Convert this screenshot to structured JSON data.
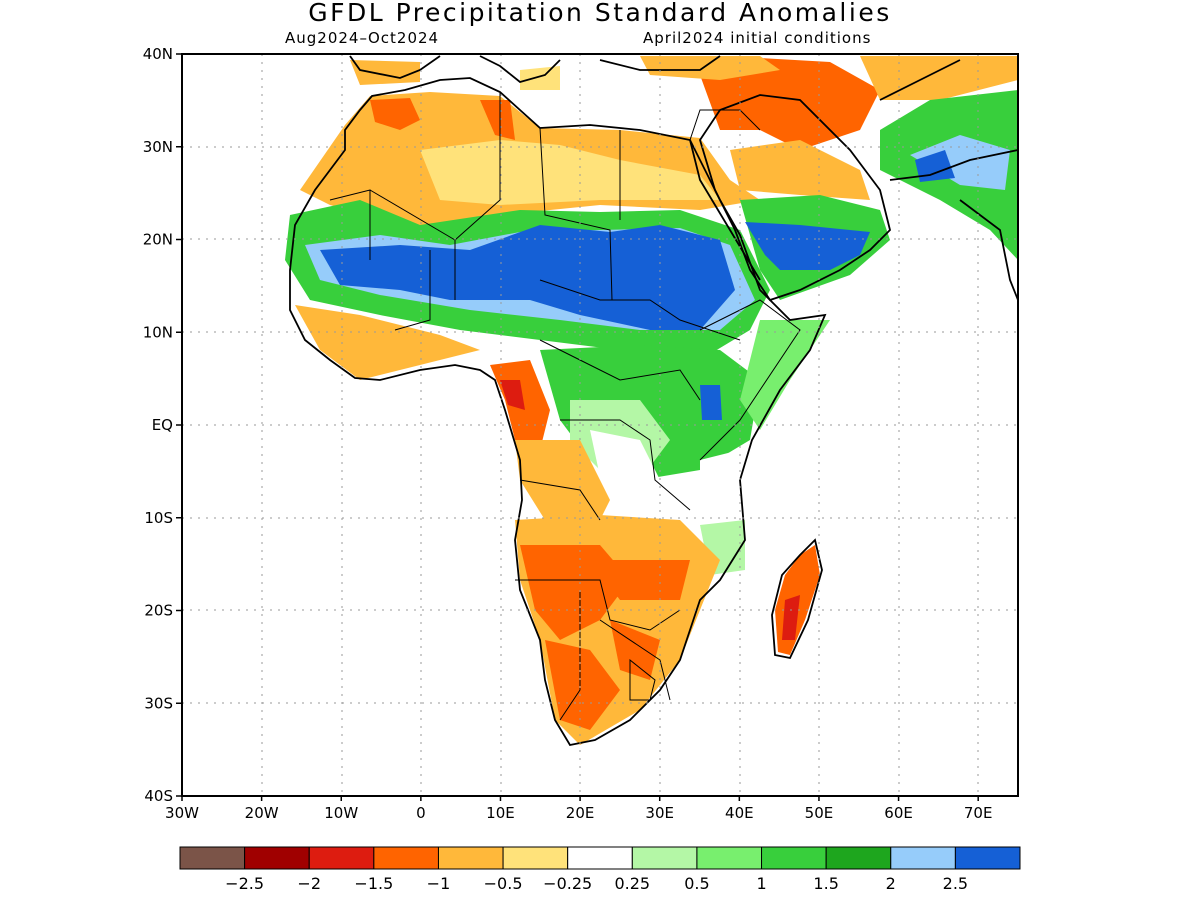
{
  "title": "GFDL Precipitation Standard Anomalies",
  "subtitle_left": "Aug2024–Oct2024",
  "subtitle_right": "April2024 initial conditions",
  "lat_labels": [
    "40N",
    "30N",
    "20N",
    "10N",
    "EQ",
    "10S",
    "20S",
    "30S",
    "40S"
  ],
  "lon_labels": [
    "30W",
    "20W",
    "10W",
    "0",
    "10E",
    "20E",
    "30E",
    "40E",
    "50E",
    "60E",
    "70E"
  ],
  "legend": {
    "colors": [
      "#7b5448",
      "#a00000",
      "#dd1c10",
      "#ff6400",
      "#ffb83a",
      "#ffe27a",
      "#ffffff",
      "#b4f7a6",
      "#78ef6e",
      "#38cf3c",
      "#1ea61e",
      "#96ccfa",
      "#1560d6"
    ],
    "labels": [
      "−2.5",
      "−2",
      "−1.5",
      "−1",
      "−0.5",
      "−0.25",
      "0.25",
      "0.5",
      "1",
      "1.5",
      "2",
      "2.5"
    ]
  },
  "map": {
    "lat_range": [
      -40,
      40
    ],
    "lon_range": [
      -30,
      75
    ]
  }
}
